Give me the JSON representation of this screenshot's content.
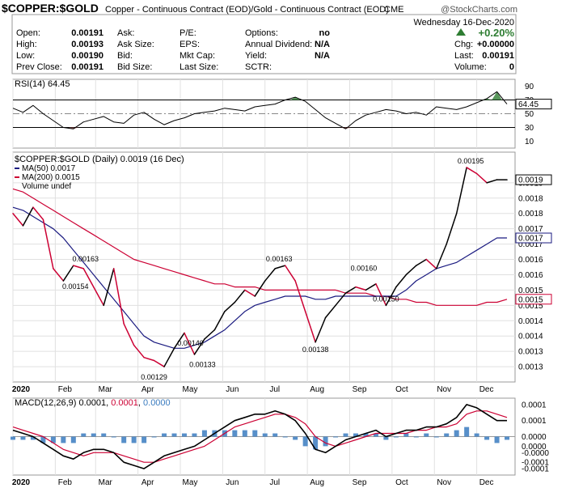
{
  "header": {
    "symbol": "$COPPER:$GOLD",
    "description": "Copper - Continuous Contract (EOD)/Gold - Continuous Contract (EOD)",
    "exchange": "CME",
    "watermark": "@StockCharts.com",
    "date": "Wednesday  16-Dec-2020",
    "change_pct": "+0.20%",
    "quote": [
      {
        "label": "Open:",
        "value": "0.00191"
      },
      {
        "label": "High:",
        "value": "0.00193"
      },
      {
        "label": "Low:",
        "value": "0.00190"
      },
      {
        "label": "Prev Close:",
        "value": "0.00191"
      }
    ],
    "quote2": [
      {
        "label": "Ask:",
        "value": ""
      },
      {
        "label": "Ask Size:",
        "value": ""
      },
      {
        "label": "Bid:",
        "value": ""
      },
      {
        "label": "Bid Size:",
        "value": ""
      }
    ],
    "quote3": [
      {
        "label": "P/E:",
        "value": ""
      },
      {
        "label": "EPS:",
        "value": ""
      },
      {
        "label": "Mkt Cap:",
        "value": ""
      },
      {
        "label": "Last Size:",
        "value": ""
      }
    ],
    "quote4": [
      {
        "label": "Options:",
        "value": "no"
      },
      {
        "label": "Annual Dividend:",
        "value": "N/A"
      },
      {
        "label": "Yield:",
        "value": "N/A"
      },
      {
        "label": "SCTR:",
        "value": ""
      }
    ],
    "quote5": [
      {
        "label": "Chg:",
        "value": "+0.00000"
      },
      {
        "label": "Last:",
        "value": "0.00191"
      },
      {
        "label": "Volume:",
        "value": "0"
      }
    ]
  },
  "colors": {
    "price": "#000000",
    "price_down": "#cc0033",
    "ma50": "#1a1a80",
    "ma200": "#cc0033",
    "rsi_fill": "#2e7d32",
    "rsi_fill_low": "#a05050",
    "macd_hist": "#3a7bbf",
    "change_up": "#2e7d32",
    "grid": "#e0e0e0"
  },
  "chart_data": [
    {
      "type": "line",
      "name": "rsi",
      "title": "RSI(14) 64.45",
      "ylim": [
        0,
        100
      ],
      "y_ticks": [
        "90",
        "70",
        "50",
        "30",
        "10"
      ],
      "y_tick_values": [
        90,
        70,
        50,
        30,
        10
      ],
      "last_label": "64.45",
      "levels": [
        70,
        30
      ],
      "x": [
        0,
        5,
        10,
        15,
        20,
        25,
        30,
        35,
        40,
        45,
        50,
        55,
        60,
        65,
        70,
        75,
        80,
        85,
        90,
        95,
        100,
        105,
        110,
        115,
        120,
        125,
        130,
        135,
        140,
        145,
        150,
        155,
        160,
        165,
        170,
        175,
        180,
        185,
        190,
        195,
        200,
        205,
        210,
        215,
        220,
        225,
        230,
        235,
        240,
        245
      ],
      "values": [
        58,
        52,
        62,
        50,
        40,
        30,
        28,
        38,
        42,
        46,
        38,
        36,
        48,
        52,
        42,
        34,
        40,
        44,
        50,
        52,
        54,
        58,
        56,
        54,
        60,
        62,
        64,
        70,
        74,
        68,
        56,
        44,
        36,
        28,
        40,
        48,
        52,
        56,
        54,
        50,
        52,
        48,
        60,
        58,
        56,
        60,
        66,
        72,
        82,
        64
      ]
    },
    {
      "type": "line",
      "name": "price",
      "title": "$COPPER:$GOLD (Daily) 0.0019 (16 Dec)",
      "legend": [
        "MA(50) 0.0017",
        "MA(200) 0.0015",
        "Volume undef"
      ],
      "x_ticks": [
        "2020",
        "Feb",
        "Mar",
        "Apr",
        "May",
        "Jun",
        "Jul",
        "Aug",
        "Sep",
        "Oct",
        "Nov",
        "Dec"
      ],
      "x_tick_positions": [
        0,
        21,
        41,
        62,
        83,
        104,
        125,
        146,
        167,
        188,
        209,
        230
      ],
      "y_ticks": [
        "0.0019",
        "0.0018",
        "0.0018",
        "0.0017",
        "0.0017",
        "0.0016",
        "0.0016",
        "0.0015",
        "0.0015",
        "0.0014",
        "0.0014",
        "0.0013",
        "0.0013"
      ],
      "y_tick_values": [
        0.0019,
        0.00185,
        0.0018,
        0.00175,
        0.0017,
        0.00165,
        0.0016,
        0.00155,
        0.0015,
        0.00145,
        0.0014,
        0.00135,
        0.0013
      ],
      "ylim": [
        0.00125,
        0.002
      ],
      "last_labels": [
        "0.0019",
        "0.0017",
        "0.0015"
      ],
      "annotations": [
        {
          "label": "0.00163",
          "x": 36,
          "y": 0.00163
        },
        {
          "label": "0.00154",
          "x": 31,
          "y": 0.00154
        },
        {
          "label": "0.00129",
          "x": 70,
          "y": 0.00129
        },
        {
          "label": "0.00140",
          "x": 88,
          "y": 0.0014
        },
        {
          "label": "0.00133",
          "x": 94,
          "y": 0.00133
        },
        {
          "label": "0.00163",
          "x": 132,
          "y": 0.00163
        },
        {
          "label": "0.00138",
          "x": 150,
          "y": 0.00138
        },
        {
          "label": "0.00160",
          "x": 174,
          "y": 0.0016
        },
        {
          "label": "0.00150",
          "x": 185,
          "y": 0.0015
        },
        {
          "label": "0.00195",
          "x": 227,
          "y": 0.00195
        }
      ],
      "x": [
        0,
        5,
        10,
        15,
        20,
        25,
        30,
        35,
        40,
        45,
        50,
        55,
        60,
        65,
        70,
        75,
        80,
        85,
        90,
        95,
        100,
        105,
        110,
        115,
        120,
        125,
        130,
        135,
        140,
        145,
        150,
        155,
        160,
        165,
        170,
        175,
        180,
        185,
        190,
        195,
        200,
        205,
        210,
        215,
        220,
        225,
        230,
        235,
        240,
        245
      ],
      "values": [
        0.0018,
        0.00176,
        0.00182,
        0.00178,
        0.00162,
        0.00158,
        0.00163,
        0.00162,
        0.00156,
        0.0015,
        0.00162,
        0.00144,
        0.00137,
        0.00133,
        0.00132,
        0.0013,
        0.00136,
        0.00141,
        0.00134,
        0.00139,
        0.00142,
        0.00148,
        0.00151,
        0.00155,
        0.00153,
        0.00158,
        0.00162,
        0.00163,
        0.00158,
        0.00148,
        0.00138,
        0.00146,
        0.0015,
        0.00154,
        0.00156,
        0.00155,
        0.00157,
        0.0015,
        0.00156,
        0.0016,
        0.00163,
        0.00165,
        0.00162,
        0.0017,
        0.0018,
        0.00195,
        0.00193,
        0.0019,
        0.00191,
        0.00191
      ],
      "series": [
        {
          "name": "MA(50) 0.0017",
          "values": [
            0.00182,
            0.00181,
            0.00179,
            0.00177,
            0.00175,
            0.00172,
            0.00168,
            0.00164,
            0.0016,
            0.00156,
            0.00152,
            0.00148,
            0.00144,
            0.0014,
            0.00138,
            0.00137,
            0.00136,
            0.00136,
            0.00137,
            0.00138,
            0.0014,
            0.00142,
            0.00145,
            0.00148,
            0.0015,
            0.00151,
            0.00152,
            0.00153,
            0.00153,
            0.00153,
            0.00152,
            0.00152,
            0.00153,
            0.00153,
            0.00153,
            0.00153,
            0.00153,
            0.00153,
            0.00153,
            0.00155,
            0.00158,
            0.0016,
            0.00162,
            0.00163,
            0.00164,
            0.00166,
            0.00168,
            0.0017,
            0.00172,
            0.00172
          ]
        },
        {
          "name": "MA(200) 0.0015",
          "values": [
            0.00188,
            0.00187,
            0.00185,
            0.00183,
            0.00181,
            0.00179,
            0.00177,
            0.00175,
            0.00173,
            0.00171,
            0.00169,
            0.00167,
            0.00165,
            0.00164,
            0.00163,
            0.00162,
            0.00161,
            0.0016,
            0.00159,
            0.00158,
            0.00157,
            0.00157,
            0.00156,
            0.00156,
            0.00156,
            0.00155,
            0.00155,
            0.00155,
            0.00155,
            0.00155,
            0.00155,
            0.00155,
            0.00155,
            0.00154,
            0.00154,
            0.00154,
            0.00153,
            0.00153,
            0.00152,
            0.00152,
            0.00151,
            0.00151,
            0.0015,
            0.0015,
            0.0015,
            0.0015,
            0.0015,
            0.00151,
            0.00151,
            0.00152
          ]
        }
      ]
    },
    {
      "type": "line",
      "name": "macd",
      "title": "MACD(12,26,9) 0.0001, 0.0001, 0.0000",
      "title_parts": [
        "MACD(12,26,9) 0.0001, ",
        "0.0001",
        ", ",
        "0.0000"
      ],
      "ylim": [
        -0.00012,
        0.00012
      ],
      "y_ticks": [
        "0.0001",
        "0.0001",
        "0.0000",
        "0.0000",
        "-0.0000",
        "-0.0001",
        "-0.0001"
      ],
      "y_tick_values": [
        0.0001,
        5e-05,
        0.0,
        -3e-05,
        -5e-05,
        -8e-05,
        -0.0001
      ],
      "x": [
        0,
        5,
        10,
        15,
        20,
        25,
        30,
        35,
        40,
        45,
        50,
        55,
        60,
        65,
        70,
        75,
        80,
        85,
        90,
        95,
        100,
        105,
        110,
        115,
        120,
        125,
        130,
        135,
        140,
        145,
        150,
        155,
        160,
        165,
        170,
        175,
        180,
        185,
        190,
        195,
        200,
        205,
        210,
        215,
        220,
        225,
        230,
        235,
        240,
        245
      ],
      "values": [
        2e-05,
        1e-05,
        0.0,
        -2e-05,
        -4e-05,
        -6e-05,
        -7e-05,
        -5e-05,
        -4e-05,
        -4e-05,
        -5e-05,
        -8e-05,
        -9e-05,
        -0.0001,
        -8e-05,
        -6e-05,
        -5e-05,
        -4e-05,
        -3e-05,
        -1e-05,
        1e-05,
        3e-05,
        5e-05,
        6e-05,
        7e-05,
        7e-05,
        8e-05,
        7e-05,
        5e-05,
        1e-05,
        -4e-05,
        -5e-05,
        -3e-05,
        -1e-05,
        0.0,
        1e-05,
        2e-05,
        0.0,
        1e-05,
        2e-05,
        2e-05,
        3e-05,
        3e-05,
        4e-05,
        6e-05,
        0.0001,
        9e-05,
        7e-05,
        5e-05,
        5e-05
      ],
      "series": [
        {
          "name": "signal",
          "values": [
            3e-05,
            2e-05,
            1e-05,
            0.0,
            -2e-05,
            -4e-05,
            -5e-05,
            -6e-05,
            -5e-05,
            -5e-05,
            -5e-05,
            -6e-05,
            -7e-05,
            -8e-05,
            -8e-05,
            -7e-05,
            -6e-05,
            -5e-05,
            -4e-05,
            -3e-05,
            -1e-05,
            1e-05,
            3e-05,
            4e-05,
            5e-05,
            6e-05,
            7e-05,
            7e-05,
            6e-05,
            4e-05,
            0.0,
            -2e-05,
            -3e-05,
            -2e-05,
            -1e-05,
            0.0,
            1e-05,
            1e-05,
            1e-05,
            1e-05,
            2e-05,
            2e-05,
            3e-05,
            3e-05,
            4e-05,
            7e-05,
            8e-05,
            8e-05,
            7e-05,
            6e-05
          ]
        }
      ]
    }
  ]
}
